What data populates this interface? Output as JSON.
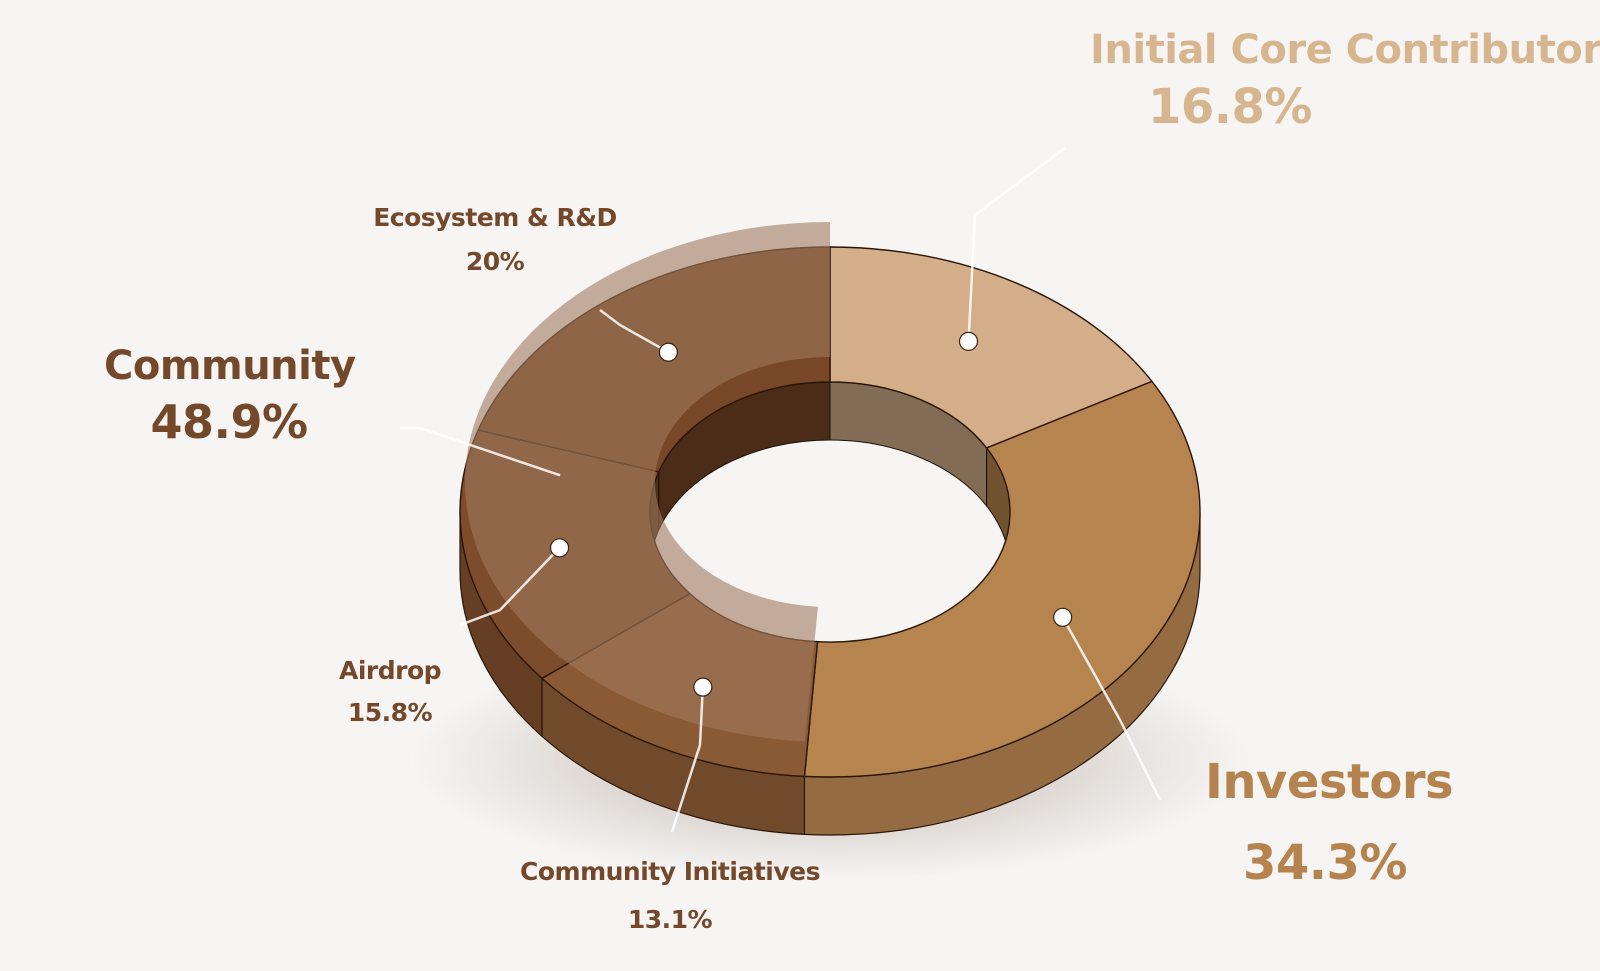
{
  "chart_data": {
    "type": "pie",
    "variant": "3d-donut",
    "title": "",
    "slices": [
      {
        "label": "Initial Core Contributors",
        "value": 16.8,
        "value_label": "16.8%",
        "color": "#d3ae89"
      },
      {
        "label": "Investors",
        "value": 34.3,
        "value_label": "34.3%",
        "color": "#b6844f"
      },
      {
        "label": "Community Initiatives",
        "value": 13.1,
        "value_label": "13.1%",
        "color": "#8a5a35"
      },
      {
        "label": "Airdrop",
        "value": 15.8,
        "value_label": "15.8%",
        "color": "#7c4c2c"
      },
      {
        "label": "Ecosystem & R&D",
        "value": 20,
        "value_label": "20%",
        "color": "#774727"
      }
    ],
    "groups": [
      {
        "label": "Community",
        "value": 48.9,
        "value_label": "48.9%",
        "members": [
          "Community Initiatives",
          "Airdrop",
          "Ecosystem & R&D"
        ],
        "color": "#a07a5e"
      }
    ],
    "label_colors": {
      "Initial Core Contributors": "#d7b68f",
      "Investors": "#b5834e",
      "Community": "#74492b",
      "Community Initiatives": "#74492b",
      "Airdrop": "#74492b",
      "Ecosystem & R&D": "#74492b"
    }
  }
}
